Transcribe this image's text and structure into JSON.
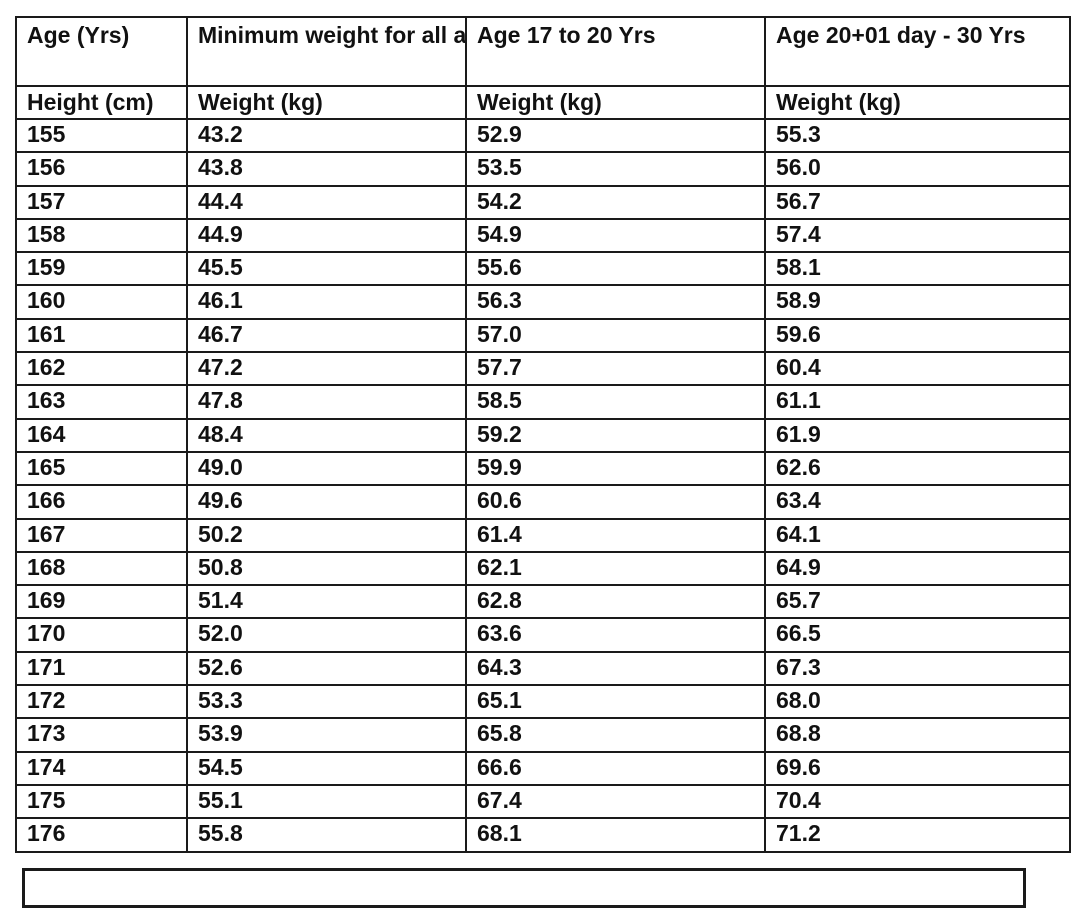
{
  "table": {
    "header_row1": [
      "Age (Yrs)",
      "Minimum weight for all ages",
      "Age 17 to 20 Yrs",
      "Age 20+01 day - 30 Yrs"
    ],
    "header_row2": [
      "Height (cm)",
      "Weight (kg)",
      "Weight (kg)",
      "Weight (kg)"
    ],
    "rows": [
      [
        "155",
        "43.2",
        "52.9",
        "55.3"
      ],
      [
        "156",
        "43.8",
        "53.5",
        "56.0"
      ],
      [
        "157",
        "44.4",
        "54.2",
        "56.7"
      ],
      [
        "158",
        "44.9",
        "54.9",
        "57.4"
      ],
      [
        "159",
        "45.5",
        "55.6",
        "58.1"
      ],
      [
        "160",
        "46.1",
        "56.3",
        "58.9"
      ],
      [
        "161",
        "46.7",
        "57.0",
        "59.6"
      ],
      [
        "162",
        "47.2",
        "57.7",
        "60.4"
      ],
      [
        "163",
        "47.8",
        "58.5",
        "61.1"
      ],
      [
        "164",
        "48.4",
        "59.2",
        "61.9"
      ],
      [
        "165",
        "49.0",
        "59.9",
        "62.6"
      ],
      [
        "166",
        "49.6",
        "60.6",
        "63.4"
      ],
      [
        "167",
        "50.2",
        "61.4",
        "64.1"
      ],
      [
        "168",
        "50.8",
        "62.1",
        "64.9"
      ],
      [
        "169",
        "51.4",
        "62.8",
        "65.7"
      ],
      [
        "170",
        "52.0",
        "63.6",
        "66.5"
      ],
      [
        "171",
        "52.6",
        "64.3",
        "67.3"
      ],
      [
        "172",
        "53.3",
        "65.1",
        "68.0"
      ],
      [
        "173",
        "53.9",
        "65.8",
        "68.8"
      ],
      [
        "174",
        "54.5",
        "66.6",
        "69.6"
      ],
      [
        "175",
        "55.1",
        "67.4",
        "70.4"
      ],
      [
        "176",
        "55.8",
        "68.1",
        "71.2"
      ]
    ]
  }
}
